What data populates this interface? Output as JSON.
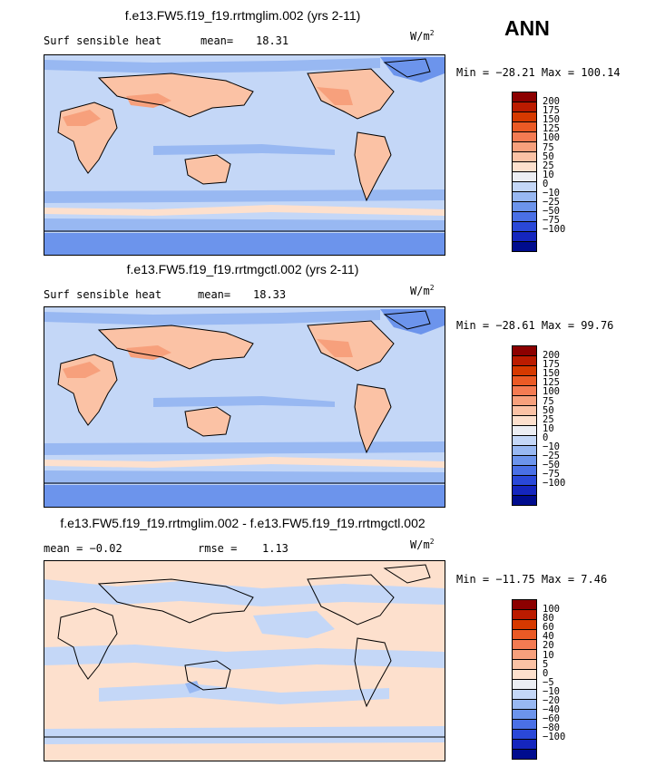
{
  "season": "ANN",
  "panels": [
    {
      "title": "f.e13.FW5.f19_f19.rrtmglim.002 (yrs 2-11)",
      "left_label": "Surf sensible heat",
      "mid_label": "mean=",
      "mid_value": "18.31",
      "units": "W/m",
      "units_exp": "2",
      "minmax": "Min = −28.21 Max = 100.14",
      "scale_labels": [
        "200",
        "175",
        "150",
        "125",
        "100",
        "75",
        "50",
        "25",
        "10",
        "0",
        "−10",
        "−25",
        "−50",
        "−75",
        "−100"
      ],
      "scale_colors": [
        "#8c0000",
        "#bb1b00",
        "#d63900",
        "#eb5a25",
        "#f47b52",
        "#f7a07c",
        "#fbc2a5",
        "#fde0cd",
        "#eceef3",
        "#c4d7f7",
        "#98b8f2",
        "#6c94ec",
        "#4a70e6",
        "#2a48d8",
        "#1526be",
        "#000c8e"
      ]
    },
    {
      "title": "f.e13.FW5.f19_f19.rrtmgctl.002 (yrs 2-11)",
      "left_label": "Surf sensible heat",
      "mid_label": "mean=",
      "mid_value": "18.33",
      "units": "W/m",
      "units_exp": "2",
      "minmax": "Min = −28.61 Max =  99.76",
      "scale_labels": [
        "200",
        "175",
        "150",
        "125",
        "100",
        "75",
        "50",
        "25",
        "10",
        "0",
        "−10",
        "−25",
        "−50",
        "−75",
        "−100"
      ],
      "scale_colors": [
        "#8c0000",
        "#bb1b00",
        "#d63900",
        "#eb5a25",
        "#f47b52",
        "#f7a07c",
        "#fbc2a5",
        "#fde0cd",
        "#eceef3",
        "#c4d7f7",
        "#98b8f2",
        "#6c94ec",
        "#4a70e6",
        "#2a48d8",
        "#1526be",
        "#000c8e"
      ]
    },
    {
      "title": "f.e13.FW5.f19_f19.rrtmglim.002 - f.e13.FW5.f19_f19.rrtmgctl.002",
      "left_label": "mean =  −0.02",
      "mid_label": "rmse =",
      "mid_value": "1.13",
      "units": "W/m",
      "units_exp": "2",
      "minmax": "Min = −11.75 Max =   7.46",
      "scale_labels": [
        "100",
        "80",
        "60",
        "40",
        "20",
        "10",
        "5",
        "0",
        "−5",
        "−10",
        "−20",
        "−40",
        "−60",
        "−80",
        "−100"
      ],
      "scale_colors": [
        "#8c0000",
        "#bb1b00",
        "#d63900",
        "#eb5a25",
        "#f47b52",
        "#f7a07c",
        "#fbc2a5",
        "#fde0cd",
        "#eceef3",
        "#c4d7f7",
        "#98b8f2",
        "#6c94ec",
        "#4a70e6",
        "#2a48d8",
        "#1526be",
        "#000c8e"
      ]
    }
  ],
  "map_colors": {
    "ocean": "#c4d7f7",
    "ocean_low": "#98b8f2",
    "land_warm": "#fbc2a5",
    "land_hot": "#f7a07c",
    "cold": "#6c94ec",
    "near_zero": "#fde0cd"
  }
}
